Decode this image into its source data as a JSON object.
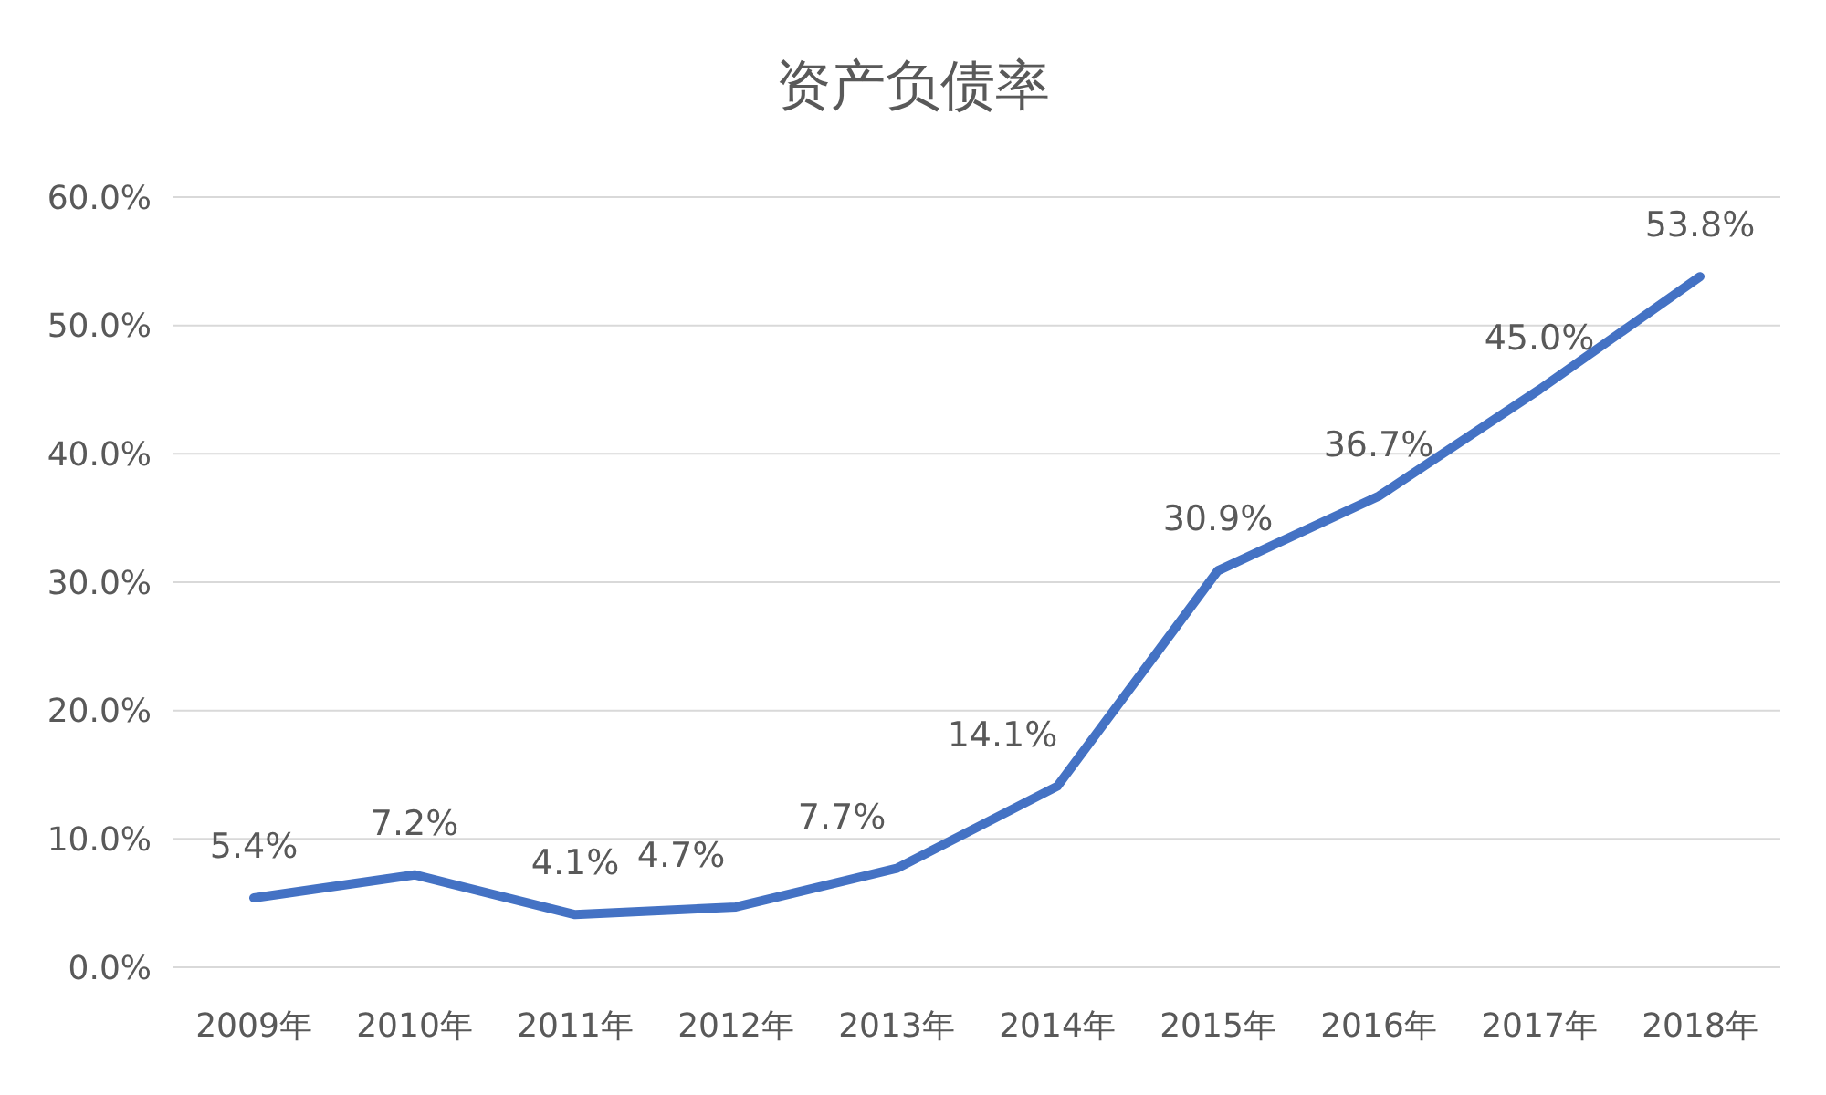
{
  "chart_data": {
    "type": "line",
    "title": "资产负债率",
    "categories": [
      "2009年",
      "2010年",
      "2011年",
      "2012年",
      "2013年",
      "2014年",
      "2015年",
      "2016年",
      "2017年",
      "2018年"
    ],
    "series": [
      {
        "color": "#4472c4",
        "values": [
          5.4,
          7.2,
          4.1,
          4.7,
          7.7,
          14.1,
          30.9,
          36.7,
          45.0,
          53.8
        ],
        "value_labels": [
          "5.4%",
          "7.2%",
          "4.1%",
          "4.7%",
          "7.7%",
          "14.1%",
          "30.9%",
          "36.7%",
          "45.0%",
          "53.8%"
        ]
      }
    ],
    "ylim": [
      0,
      60
    ],
    "yticks": [
      {
        "value": 0,
        "label": "0.0%"
      },
      {
        "value": 10,
        "label": "10.0%"
      },
      {
        "value": 20,
        "label": "20.0%"
      },
      {
        "value": 30,
        "label": "30.0%"
      },
      {
        "value": 40,
        "label": "40.0%"
      },
      {
        "value": 50,
        "label": "50.0%"
      },
      {
        "value": 60,
        "label": "60.0%"
      }
    ],
    "grid": "y",
    "marker": "none",
    "line_style": "solid"
  }
}
